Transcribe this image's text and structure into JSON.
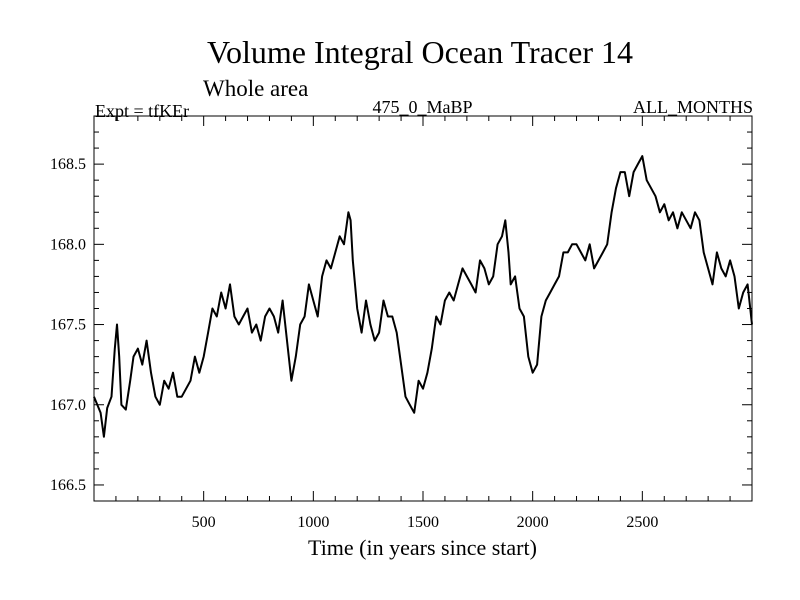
{
  "header": {
    "title": "Volume Integral Ocean Tracer 14",
    "subtitle": "Whole area",
    "experiment": "Expt = tfKEr",
    "experiment_id": "475_0_MaBP",
    "months": "ALL_MONTHS"
  },
  "chart_data": {
    "type": "line",
    "title": "Volume Integral Ocean Tracer 14",
    "subtitle": "Whole area",
    "xlabel": "Time (in years since start)",
    "ylabel": "",
    "xlim": [
      0,
      3000
    ],
    "ylim": [
      166.4,
      168.8
    ],
    "xticks": [
      500,
      1000,
      1500,
      2000,
      2500
    ],
    "yticks": [
      166.5,
      167.0,
      167.5,
      168.0,
      168.5
    ],
    "xtick_labels": [
      "500",
      "1000",
      "1500",
      "2000",
      "2500"
    ],
    "ytick_labels": [
      "166.5",
      "167.0",
      "167.5",
      "168.0",
      "168.5"
    ],
    "grid": false,
    "series": [
      {
        "color": "#000000",
        "points": [
          [
            0,
            167.05
          ],
          [
            30,
            166.95
          ],
          [
            45,
            166.8
          ],
          [
            60,
            166.98
          ],
          [
            80,
            167.05
          ],
          [
            95,
            167.35
          ],
          [
            105,
            167.5
          ],
          [
            115,
            167.3
          ],
          [
            125,
            167.0
          ],
          [
            145,
            166.97
          ],
          [
            165,
            167.15
          ],
          [
            180,
            167.3
          ],
          [
            200,
            167.35
          ],
          [
            220,
            167.25
          ],
          [
            240,
            167.4
          ],
          [
            260,
            167.2
          ],
          [
            280,
            167.05
          ],
          [
            300,
            167.0
          ],
          [
            320,
            167.15
          ],
          [
            340,
            167.1
          ],
          [
            360,
            167.2
          ],
          [
            380,
            167.05
          ],
          [
            400,
            167.05
          ],
          [
            420,
            167.1
          ],
          [
            440,
            167.15
          ],
          [
            460,
            167.3
          ],
          [
            480,
            167.2
          ],
          [
            500,
            167.3
          ],
          [
            520,
            167.45
          ],
          [
            540,
            167.6
          ],
          [
            560,
            167.55
          ],
          [
            580,
            167.7
          ],
          [
            600,
            167.6
          ],
          [
            620,
            167.75
          ],
          [
            640,
            167.55
          ],
          [
            660,
            167.5
          ],
          [
            680,
            167.55
          ],
          [
            700,
            167.6
          ],
          [
            720,
            167.45
          ],
          [
            740,
            167.5
          ],
          [
            760,
            167.4
          ],
          [
            780,
            167.55
          ],
          [
            800,
            167.6
          ],
          [
            820,
            167.55
          ],
          [
            840,
            167.45
          ],
          [
            860,
            167.65
          ],
          [
            880,
            167.4
          ],
          [
            900,
            167.15
          ],
          [
            920,
            167.3
          ],
          [
            940,
            167.5
          ],
          [
            960,
            167.55
          ],
          [
            980,
            167.75
          ],
          [
            1000,
            167.65
          ],
          [
            1020,
            167.55
          ],
          [
            1040,
            167.8
          ],
          [
            1060,
            167.9
          ],
          [
            1080,
            167.85
          ],
          [
            1100,
            167.95
          ],
          [
            1120,
            168.05
          ],
          [
            1140,
            168.0
          ],
          [
            1160,
            168.2
          ],
          [
            1170,
            168.15
          ],
          [
            1180,
            167.9
          ],
          [
            1200,
            167.6
          ],
          [
            1220,
            167.45
          ],
          [
            1240,
            167.65
          ],
          [
            1260,
            167.5
          ],
          [
            1280,
            167.4
          ],
          [
            1300,
            167.45
          ],
          [
            1320,
            167.65
          ],
          [
            1340,
            167.55
          ],
          [
            1360,
            167.55
          ],
          [
            1380,
            167.45
          ],
          [
            1400,
            167.25
          ],
          [
            1420,
            167.05
          ],
          [
            1440,
            167.0
          ],
          [
            1460,
            166.95
          ],
          [
            1480,
            167.15
          ],
          [
            1500,
            167.1
          ],
          [
            1520,
            167.2
          ],
          [
            1540,
            167.35
          ],
          [
            1560,
            167.55
          ],
          [
            1580,
            167.5
          ],
          [
            1600,
            167.65
          ],
          [
            1620,
            167.7
          ],
          [
            1640,
            167.65
          ],
          [
            1660,
            167.75
          ],
          [
            1680,
            167.85
          ],
          [
            1700,
            167.8
          ],
          [
            1720,
            167.75
          ],
          [
            1740,
            167.7
          ],
          [
            1760,
            167.9
          ],
          [
            1780,
            167.85
          ],
          [
            1800,
            167.75
          ],
          [
            1820,
            167.8
          ],
          [
            1840,
            168.0
          ],
          [
            1860,
            168.05
          ],
          [
            1875,
            168.15
          ],
          [
            1890,
            167.95
          ],
          [
            1900,
            167.75
          ],
          [
            1920,
            167.8
          ],
          [
            1940,
            167.6
          ],
          [
            1960,
            167.55
          ],
          [
            1980,
            167.3
          ],
          [
            2000,
            167.2
          ],
          [
            2020,
            167.25
          ],
          [
            2040,
            167.55
          ],
          [
            2060,
            167.65
          ],
          [
            2080,
            167.7
          ],
          [
            2100,
            167.75
          ],
          [
            2120,
            167.8
          ],
          [
            2140,
            167.95
          ],
          [
            2160,
            167.95
          ],
          [
            2180,
            168.0
          ],
          [
            2200,
            168.0
          ],
          [
            2220,
            167.95
          ],
          [
            2240,
            167.9
          ],
          [
            2260,
            168.0
          ],
          [
            2280,
            167.85
          ],
          [
            2300,
            167.9
          ],
          [
            2320,
            167.95
          ],
          [
            2340,
            168.0
          ],
          [
            2360,
            168.2
          ],
          [
            2380,
            168.35
          ],
          [
            2400,
            168.45
          ],
          [
            2420,
            168.45
          ],
          [
            2440,
            168.3
          ],
          [
            2460,
            168.45
          ],
          [
            2480,
            168.5
          ],
          [
            2500,
            168.55
          ],
          [
            2520,
            168.4
          ],
          [
            2540,
            168.35
          ],
          [
            2560,
            168.3
          ],
          [
            2580,
            168.2
          ],
          [
            2600,
            168.25
          ],
          [
            2620,
            168.15
          ],
          [
            2640,
            168.2
          ],
          [
            2660,
            168.1
          ],
          [
            2680,
            168.2
          ],
          [
            2700,
            168.15
          ],
          [
            2720,
            168.1
          ],
          [
            2740,
            168.2
          ],
          [
            2760,
            168.15
          ],
          [
            2780,
            167.95
          ],
          [
            2800,
            167.85
          ],
          [
            2820,
            167.75
          ],
          [
            2840,
            167.95
          ],
          [
            2860,
            167.85
          ],
          [
            2880,
            167.8
          ],
          [
            2900,
            167.9
          ],
          [
            2920,
            167.8
          ],
          [
            2940,
            167.6
          ],
          [
            2960,
            167.7
          ],
          [
            2980,
            167.75
          ],
          [
            3000,
            167.5
          ]
        ]
      }
    ]
  }
}
